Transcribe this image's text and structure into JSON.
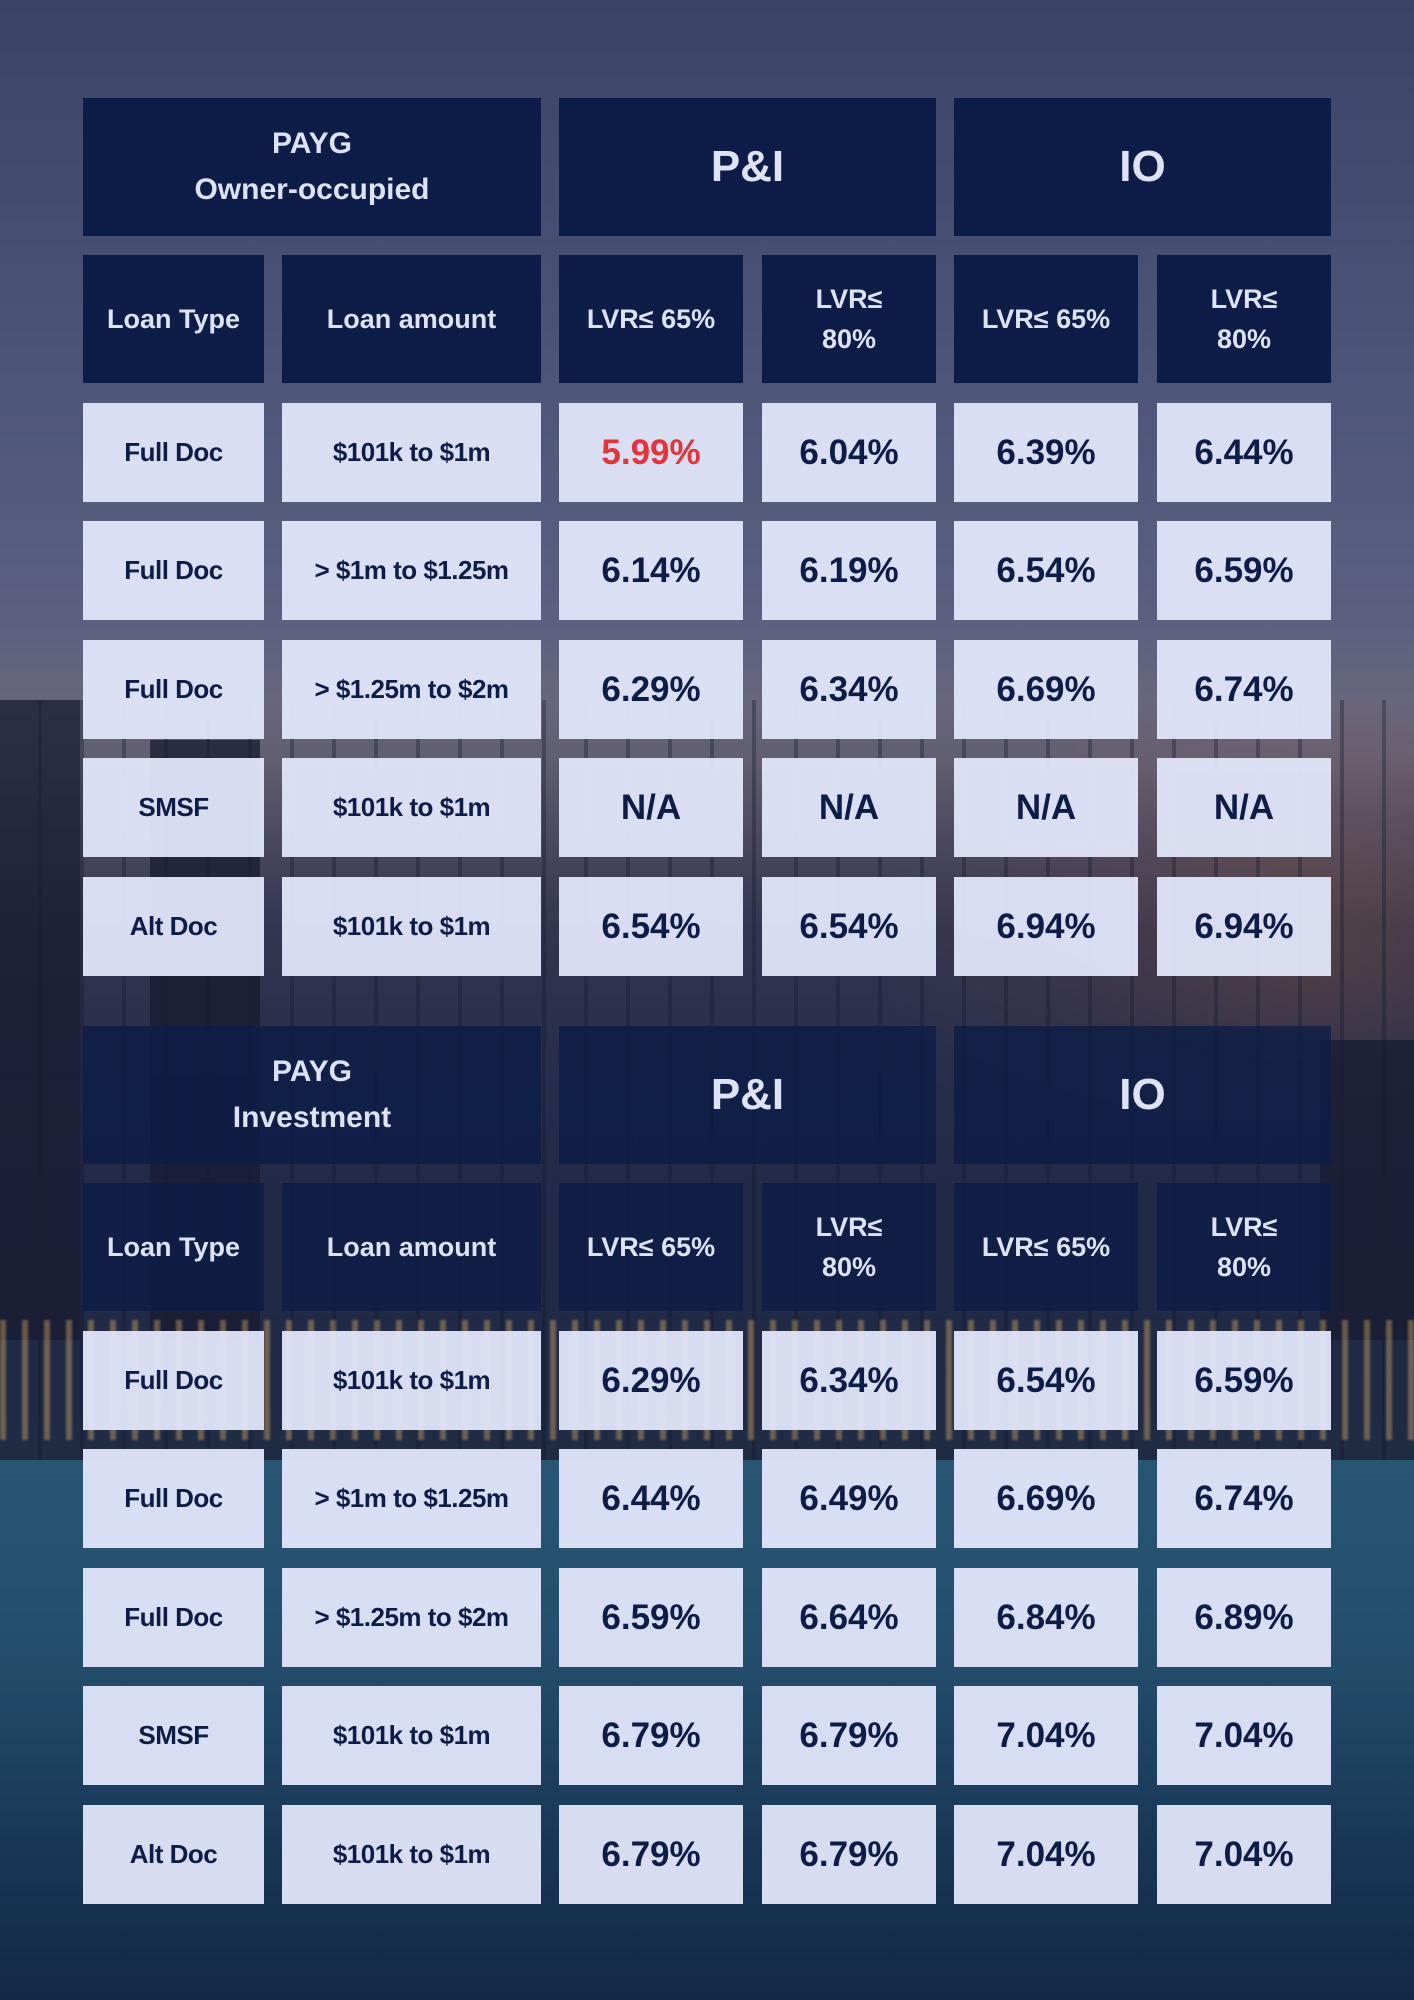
{
  "tables": [
    {
      "group": {
        "line1": "PAYG",
        "line2": "Owner-occupied"
      },
      "col_groups": [
        "P&I",
        "IO"
      ],
      "columns": [
        "Loan Type",
        "Loan amount",
        "LVR≤ 65%",
        "LVR≤ 80%",
        "LVR≤ 65%",
        "LVR≤ 80%"
      ],
      "rows": [
        [
          "Full Doc",
          "$101k to $1m",
          "5.99%",
          "6.04%",
          "6.39%",
          "6.44%"
        ],
        [
          "Full Doc",
          "> $1m to $1.25m",
          "6.14%",
          "6.19%",
          "6.54%",
          "6.59%"
        ],
        [
          "Full Doc",
          "> $1.25m to $2m",
          "6.29%",
          "6.34%",
          "6.69%",
          "6.74%"
        ],
        [
          "SMSF",
          "$101k to $1m",
          "N/A",
          "N/A",
          "N/A",
          "N/A"
        ],
        [
          "Alt Doc",
          "$101k to $1m",
          "6.54%",
          "6.54%",
          "6.94%",
          "6.94%"
        ]
      ],
      "highlight_color": "#e5333b"
    },
    {
      "group": {
        "line1": "PAYG",
        "line2": "Investment"
      },
      "col_groups": [
        "P&I",
        "IO"
      ],
      "columns": [
        "Loan Type",
        "Loan amount",
        "LVR≤ 65%",
        "LVR≤ 80%",
        "LVR≤ 65%",
        "LVR≤ 80%"
      ],
      "rows": [
        [
          "Full Doc",
          "$101k to $1m",
          "6.29%",
          "6.34%",
          "6.54%",
          "6.59%"
        ],
        [
          "Full Doc",
          "> $1m to $1.25m",
          "6.44%",
          "6.49%",
          "6.69%",
          "6.74%"
        ],
        [
          "Full Doc",
          "> $1.25m to $2m",
          "6.59%",
          "6.64%",
          "6.84%",
          "6.89%"
        ],
        [
          "SMSF",
          "$101k to $1m",
          "6.79%",
          "6.79%",
          "7.04%",
          "7.04%"
        ],
        [
          "Alt Doc",
          "$101k to $1m",
          "6.79%",
          "6.79%",
          "7.04%",
          "7.04%"
        ]
      ]
    }
  ]
}
